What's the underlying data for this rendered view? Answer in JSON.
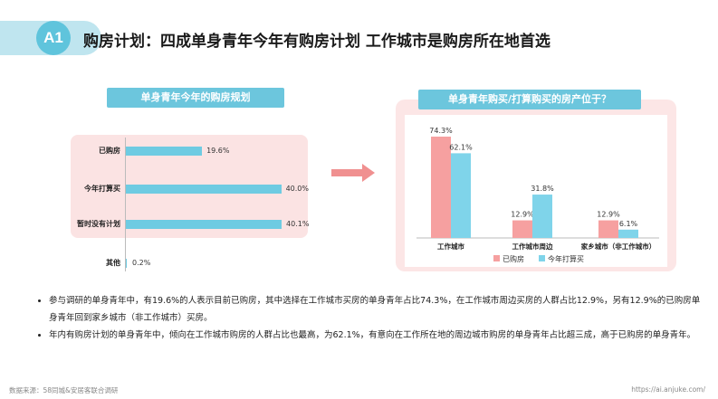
{
  "header": {
    "badge": "A1",
    "title": "购房计划：四成单身青年今年有购房计划 工作城市是购房所在地首选"
  },
  "left_chart": {
    "tag": "单身青年今年的购房规划"
  },
  "right_chart": {
    "tag": "单身青年购买/打算购买的房产位于？"
  },
  "chart_data": [
    {
      "type": "bar",
      "orientation": "horizontal",
      "title": "单身青年今年的购房规划",
      "categories": [
        "已购房",
        "今年打算买",
        "暂时没有计划",
        "其他"
      ],
      "values": [
        19.6,
        40.0,
        40.1,
        0.2
      ],
      "value_labels": [
        "19.6%",
        "40.0%",
        "40.1%",
        "0.2%"
      ],
      "xlim": [
        0,
        45
      ],
      "grid": false,
      "bar_color": "#6ecbe2"
    },
    {
      "type": "bar",
      "title": "单身青年购买/打算购买的房产位于？",
      "categories": [
        "工作城市",
        "工作城市周边",
        "家乡城市（非工作城市）"
      ],
      "series": [
        {
          "name": "已购房",
          "values": [
            74.3,
            12.9,
            12.9
          ],
          "labels": [
            "74.3%",
            "12.9%",
            "12.9%"
          ],
          "color": "#f6a0a0"
        },
        {
          "name": "今年打算买",
          "values": [
            62.1,
            31.8,
            6.1
          ],
          "labels": [
            "62.1%",
            "31.8%",
            "6.1%"
          ],
          "color": "#7fd4ea"
        }
      ],
      "ylim": [
        0,
        80
      ],
      "grid": false,
      "legend": "bottom"
    }
  ],
  "bullets": [
    "参与调研的单身青年中，有19.6%的人表示目前已购房，其中选择在工作城市买房的单身青年占比74.3%，在工作城市周边买房的人群占比12.9%，另有12.9%的已购房单身青年回到家乡城市（非工作城市）买房。",
    "年内有购房计划的单身青年中，倾向在工作城市购房的人群占比也最高，为62.1%，有意向在工作所在地的周边城市购房的单身青年占比超三成，高于已购房的单身青年。"
  ],
  "footer": {
    "source": "数据来源：58同城&安居客联合调研",
    "url": "https://ai.anjuke.com/"
  }
}
